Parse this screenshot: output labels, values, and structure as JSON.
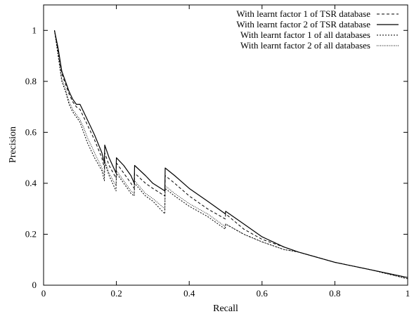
{
  "chart_data": {
    "type": "line",
    "xlabel": "Recall",
    "ylabel": "Precision",
    "xlim": [
      0,
      1
    ],
    "ylim": [
      0,
      1.1
    ],
    "xticks": [
      0,
      0.2,
      0.4,
      0.6,
      0.8,
      1
    ],
    "yticks": [
      0,
      0.2,
      0.4,
      0.6,
      0.8,
      1
    ],
    "xtick_labels": [
      "0",
      "0.2",
      "0.4",
      "0.6",
      "0.8",
      "1"
    ],
    "ytick_labels": [
      "0",
      "0.2",
      "0.4",
      "0.6",
      "0.8",
      "1"
    ],
    "grid": false,
    "legend_position": "top-right",
    "series": [
      {
        "name": "With learnt factor 1 of TSR database",
        "dash": "dashed",
        "x": [
          0.03,
          0.04,
          0.05,
          0.06,
          0.07,
          0.08,
          0.09,
          0.1,
          0.11,
          0.12,
          0.14,
          0.16,
          0.167,
          0.168,
          0.18,
          0.199,
          0.2,
          0.22,
          0.24,
          0.249,
          0.25,
          0.28,
          0.3,
          0.333,
          0.334,
          0.36,
          0.4,
          0.45,
          0.499,
          0.5,
          0.55,
          0.6,
          0.66,
          0.7,
          0.8,
          0.9,
          1.0
        ],
        "y": [
          1.0,
          0.92,
          0.83,
          0.79,
          0.75,
          0.72,
          0.7,
          0.69,
          0.66,
          0.63,
          0.57,
          0.5,
          0.46,
          0.52,
          0.47,
          0.42,
          0.48,
          0.44,
          0.4,
          0.38,
          0.44,
          0.4,
          0.38,
          0.35,
          0.43,
          0.4,
          0.35,
          0.3,
          0.26,
          0.28,
          0.22,
          0.18,
          0.15,
          0.13,
          0.09,
          0.06,
          0.03
        ]
      },
      {
        "name": "With learnt factor 2 of TSR database",
        "dash": "solid",
        "x": [
          0.03,
          0.04,
          0.05,
          0.06,
          0.07,
          0.08,
          0.09,
          0.1,
          0.11,
          0.12,
          0.14,
          0.16,
          0.167,
          0.168,
          0.18,
          0.199,
          0.2,
          0.22,
          0.24,
          0.249,
          0.25,
          0.28,
          0.3,
          0.333,
          0.334,
          0.36,
          0.4,
          0.45,
          0.499,
          0.5,
          0.55,
          0.6,
          0.66,
          0.7,
          0.8,
          0.9,
          1.0
        ],
        "y": [
          1.0,
          0.93,
          0.84,
          0.8,
          0.76,
          0.73,
          0.71,
          0.71,
          0.68,
          0.65,
          0.59,
          0.52,
          0.48,
          0.55,
          0.5,
          0.44,
          0.5,
          0.47,
          0.43,
          0.4,
          0.47,
          0.43,
          0.4,
          0.37,
          0.46,
          0.43,
          0.38,
          0.33,
          0.28,
          0.29,
          0.24,
          0.19,
          0.15,
          0.13,
          0.09,
          0.06,
          0.03
        ]
      },
      {
        "name": "With learnt factor 1 of all databases",
        "dash": "dotted",
        "x": [
          0.03,
          0.04,
          0.05,
          0.06,
          0.07,
          0.08,
          0.09,
          0.1,
          0.11,
          0.12,
          0.14,
          0.16,
          0.167,
          0.168,
          0.18,
          0.199,
          0.2,
          0.22,
          0.24,
          0.249,
          0.25,
          0.28,
          0.3,
          0.333,
          0.334,
          0.36,
          0.4,
          0.45,
          0.499,
          0.5,
          0.55,
          0.6,
          0.66,
          0.7,
          0.8,
          0.9,
          1.0
        ],
        "y": [
          1.0,
          0.9,
          0.8,
          0.76,
          0.71,
          0.68,
          0.66,
          0.64,
          0.6,
          0.56,
          0.5,
          0.45,
          0.41,
          0.48,
          0.43,
          0.37,
          0.44,
          0.4,
          0.36,
          0.35,
          0.4,
          0.35,
          0.33,
          0.28,
          0.38,
          0.35,
          0.31,
          0.27,
          0.22,
          0.24,
          0.2,
          0.17,
          0.14,
          0.13,
          0.09,
          0.06,
          0.025
        ]
      },
      {
        "name": "With learnt factor 2 of all databases",
        "dash": "fine-dotted",
        "x": [
          0.03,
          0.04,
          0.05,
          0.06,
          0.07,
          0.08,
          0.09,
          0.1,
          0.11,
          0.12,
          0.14,
          0.16,
          0.167,
          0.168,
          0.18,
          0.199,
          0.2,
          0.22,
          0.24,
          0.249,
          0.25,
          0.28,
          0.3,
          0.333,
          0.334,
          0.36,
          0.4,
          0.45,
          0.499,
          0.5,
          0.55,
          0.6,
          0.66,
          0.7,
          0.8,
          0.9,
          1.0
        ],
        "y": [
          1.0,
          0.91,
          0.81,
          0.77,
          0.72,
          0.69,
          0.67,
          0.65,
          0.62,
          0.58,
          0.52,
          0.46,
          0.43,
          0.49,
          0.44,
          0.39,
          0.45,
          0.41,
          0.37,
          0.36,
          0.41,
          0.36,
          0.34,
          0.3,
          0.39,
          0.36,
          0.32,
          0.28,
          0.23,
          0.24,
          0.2,
          0.17,
          0.14,
          0.13,
          0.09,
          0.06,
          0.025
        ]
      }
    ]
  }
}
